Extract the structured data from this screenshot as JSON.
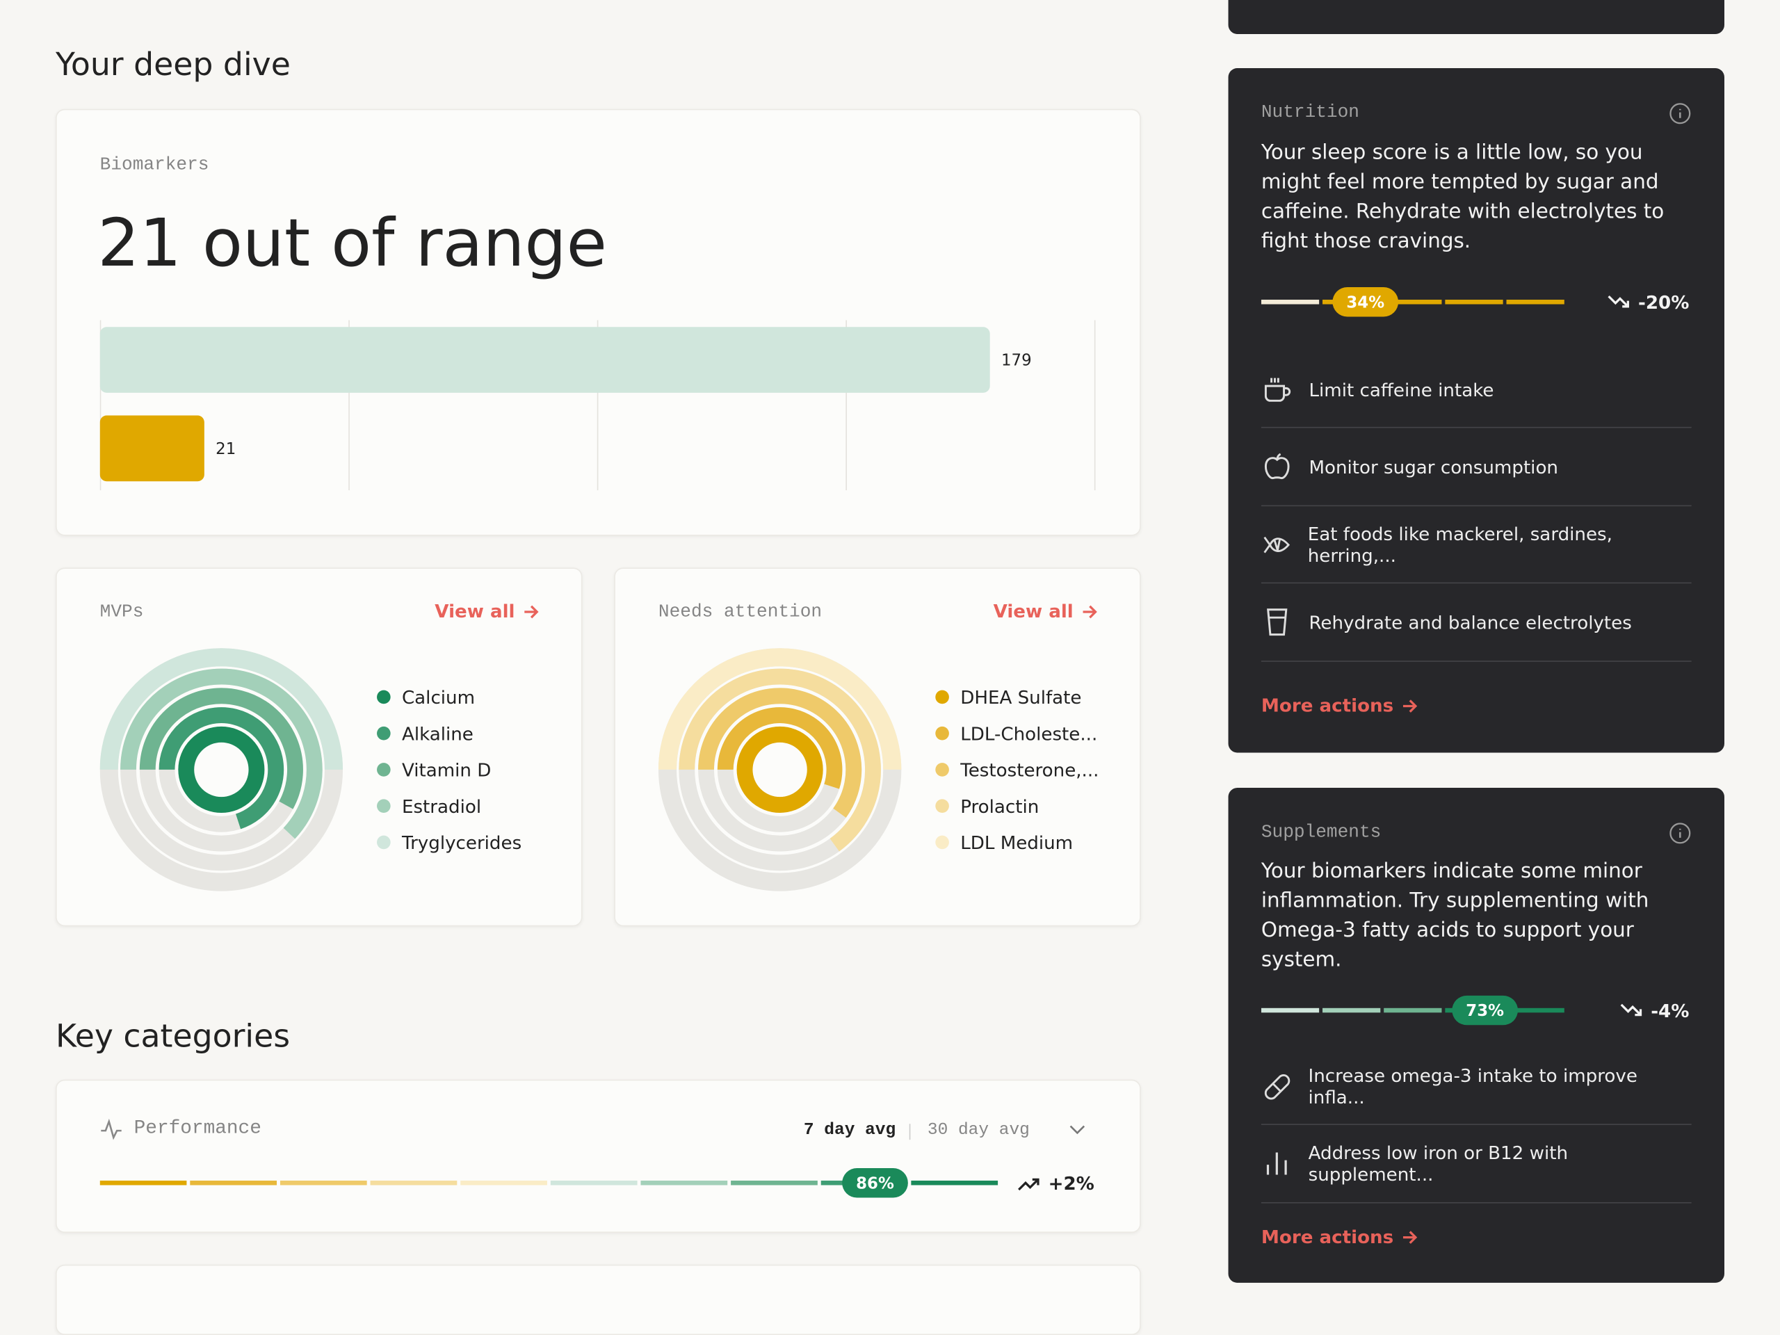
{
  "deep_dive": {
    "title": "Your deep dive"
  },
  "biomarkers": {
    "label": "Biomarkers",
    "headline": "21 out of range"
  },
  "mvps": {
    "label": "MVPs",
    "link": "View all"
  },
  "needs_attention": {
    "label": "Needs attention",
    "link": "View all"
  },
  "key_categories": {
    "title": "Key categories",
    "performance": {
      "label": "Performance",
      "options": [
        "7 day avg",
        "30 day avg"
      ]
    }
  },
  "nutrition": {
    "label": "Nutrition",
    "text": "Your sleep score is a little low, so you might feel more tempted by sugar and caffeine. Rehydrate with electrolytes to fight those cravings.",
    "actions": [
      "Limit caffeine intake",
      "Monitor sugar consumption",
      "Eat foods like mackerel, sardines, herring,...",
      "Rehydrate and balance electrolytes"
    ],
    "more": "More actions"
  },
  "supplements": {
    "label": "Supplements",
    "text": "Your biomarkers indicate some minor inflammation. Try supplementing with Omega-3 fatty acids to support your system.",
    "actions": [
      "Increase omega-3 intake to improve infla...",
      "Address low iron or B12 with supplement..."
    ],
    "more": "More actions"
  },
  "chart_data": [
    {
      "type": "bar",
      "orientation": "horizontal",
      "values": [
        179,
        21
      ],
      "colors": [
        "#d0e6dc",
        "#e0a800"
      ],
      "xlim": [
        0,
        200
      ],
      "xticks": [
        0,
        50,
        100,
        150,
        200
      ],
      "grid": true
    },
    {
      "type": "radial",
      "categories": [
        "Calcium",
        "Alkaline",
        "Vitamin D",
        "Estradiol",
        "Tryglycerides"
      ],
      "values": [
        100,
        70,
        58,
        62,
        50
      ],
      "colors": [
        "#1a8a5a",
        "#3f9d74",
        "#6fb491",
        "#a3d0b9",
        "#d0e6dc"
      ],
      "rlim": [
        0,
        100
      ]
    },
    {
      "type": "radial",
      "categories": [
        "DHEA Sulfate",
        "LDL-Choleste...",
        "Testosterone,...",
        "Prolactin",
        "LDL Medium"
      ],
      "values": [
        100,
        55,
        60,
        65,
        50
      ],
      "colors": [
        "#e0a800",
        "#e8b83a",
        "#efca6a",
        "#f5dd9e",
        "#faecc6"
      ],
      "rlim": [
        0,
        100
      ]
    },
    {
      "type": "progress",
      "values": [
        34
      ],
      "value_labels": [
        "34%"
      ],
      "change": -20,
      "change_label": "-20%",
      "xlim": [
        0,
        100
      ],
      "color": "#e0a800",
      "segment_colors": [
        "#f4ecd8",
        "#e0a800",
        "#e0a800",
        "#e0a800",
        "#e0a800"
      ]
    },
    {
      "type": "progress",
      "values": [
        73
      ],
      "value_labels": [
        "73%"
      ],
      "change": -4,
      "change_label": "-4%",
      "xlim": [
        0,
        100
      ],
      "color": "#1a8a5a",
      "segment_colors": [
        "#d0e6dc",
        "#a3d0b9",
        "#6fb491",
        "#1a8a5a",
        "#1a8a5a"
      ]
    },
    {
      "type": "progress",
      "values": [
        86
      ],
      "value_labels": [
        "86%"
      ],
      "change": 2,
      "change_label": "+2%",
      "xlim": [
        0,
        100
      ],
      "color": "#1a8a5a",
      "segment_colors": [
        "#e0a800",
        "#e8b83a",
        "#efca6a",
        "#f5dd9e",
        "#faecc6",
        "#d0e6dc",
        "#a3d0b9",
        "#6fb491",
        "#3f9d74",
        "#1a8a5a"
      ]
    }
  ]
}
